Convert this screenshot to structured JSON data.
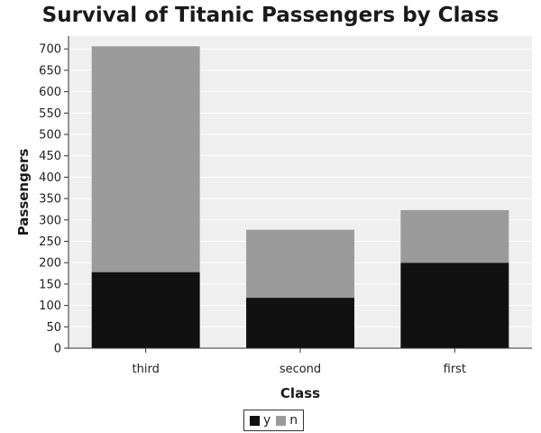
{
  "chart_data": {
    "type": "bar",
    "stacked": true,
    "title": "Survival of Titanic Passengers by Class",
    "xlabel": "Class",
    "ylabel": "Passengers",
    "categories": [
      "third",
      "second",
      "first"
    ],
    "series": [
      {
        "name": "y",
        "values": [
          178,
          118,
          200
        ],
        "color": "#111111"
      },
      {
        "name": "n",
        "values": [
          528,
          159,
          123
        ],
        "color": "#9a9a9a"
      }
    ],
    "ylim": [
      0,
      730
    ],
    "yticks": [
      0,
      50,
      100,
      150,
      200,
      250,
      300,
      350,
      400,
      450,
      500,
      550,
      600,
      650,
      700
    ],
    "grid": true,
    "legend_position": "bottom-center",
    "plot_background": "#efefef"
  }
}
